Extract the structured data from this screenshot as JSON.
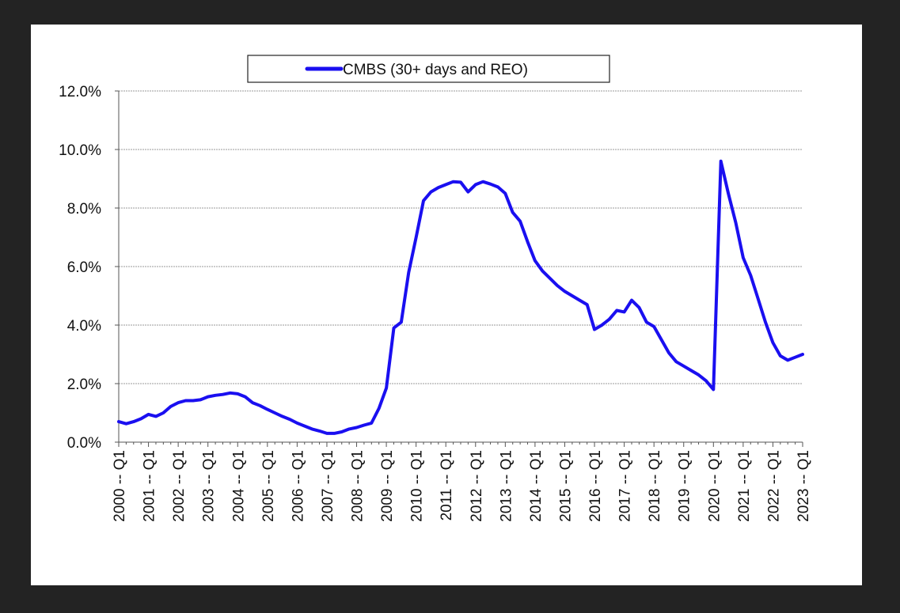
{
  "chart_data": {
    "type": "line",
    "title": "",
    "xlabel": "",
    "ylabel": "",
    "ylim": [
      0,
      12
    ],
    "y_tick_labels": [
      "0.0%",
      "2.0%",
      "4.0%",
      "6.0%",
      "8.0%",
      "10.0%",
      "12.0%"
    ],
    "x_tick_labels": [
      "2000 -- Q1",
      "2001 -- Q1",
      "2002 -- Q1",
      "2003 -- Q1",
      "2004 -- Q1",
      "2005 -- Q1",
      "2006 -- Q1",
      "2007 -- Q1",
      "2008 -- Q1",
      "2009 -- Q1",
      "2010 -- Q1",
      "2011 -- Q1",
      "2012 -- Q1",
      "2013 -- Q1",
      "2014 -- Q1",
      "2015 -- Q1",
      "2016 -- Q1",
      "2017 -- Q1",
      "2018 -- Q1",
      "2019 -- Q1",
      "2020 -- Q1",
      "2021 -- Q1",
      "2022 -- Q1",
      "2023 -- Q1"
    ],
    "grid": true,
    "legend_position": "top-center",
    "series": [
      {
        "name": "CMBS (30+ days and REO)",
        "color": "#1a0ff0",
        "x": [
          2000.0,
          2000.25,
          2000.5,
          2000.75,
          2001.0,
          2001.25,
          2001.5,
          2001.75,
          2002.0,
          2002.25,
          2002.5,
          2002.75,
          2003.0,
          2003.25,
          2003.5,
          2003.75,
          2004.0,
          2004.25,
          2004.5,
          2004.75,
          2005.0,
          2005.25,
          2005.5,
          2005.75,
          2006.0,
          2006.25,
          2006.5,
          2006.75,
          2007.0,
          2007.25,
          2007.5,
          2007.75,
          2008.0,
          2008.25,
          2008.5,
          2008.75,
          2009.0,
          2009.25,
          2009.5,
          2009.75,
          2010.0,
          2010.25,
          2010.5,
          2010.75,
          2011.0,
          2011.25,
          2011.5,
          2011.75,
          2012.0,
          2012.25,
          2012.5,
          2012.75,
          2013.0,
          2013.25,
          2013.5,
          2013.75,
          2014.0,
          2014.25,
          2014.5,
          2014.75,
          2015.0,
          2015.25,
          2015.5,
          2015.75,
          2016.0,
          2016.25,
          2016.5,
          2016.75,
          2017.0,
          2017.25,
          2017.5,
          2017.75,
          2018.0,
          2018.25,
          2018.5,
          2018.75,
          2019.0,
          2019.25,
          2019.5,
          2019.75,
          2020.0,
          2020.25,
          2020.5,
          2020.75,
          2021.0,
          2021.25,
          2021.5,
          2021.75,
          2022.0,
          2022.25,
          2022.5,
          2022.75,
          2023.0
        ],
        "values": [
          0.7,
          0.63,
          0.7,
          0.8,
          0.95,
          0.88,
          1.0,
          1.22,
          1.35,
          1.42,
          1.42,
          1.45,
          1.55,
          1.6,
          1.63,
          1.68,
          1.65,
          1.55,
          1.35,
          1.25,
          1.12,
          1.0,
          0.88,
          0.78,
          0.65,
          0.55,
          0.45,
          0.38,
          0.3,
          0.3,
          0.35,
          0.45,
          0.5,
          0.58,
          0.65,
          1.15,
          1.85,
          3.9,
          4.1,
          5.8,
          7.0,
          8.25,
          8.55,
          8.7,
          8.8,
          8.9,
          8.88,
          8.55,
          8.8,
          8.9,
          8.82,
          8.72,
          8.5,
          7.85,
          7.55,
          6.85,
          6.2,
          5.85,
          5.6,
          5.35,
          5.15,
          5.0,
          4.85,
          4.7,
          3.85,
          4.0,
          4.2,
          4.5,
          4.45,
          4.85,
          4.6,
          4.1,
          3.95,
          3.5,
          3.05,
          2.75,
          2.6,
          2.45,
          2.3,
          2.1,
          1.8,
          9.6,
          8.5,
          7.5,
          6.3,
          5.7,
          4.9,
          4.1,
          3.4,
          2.95,
          2.8,
          2.9,
          3.0
        ]
      }
    ]
  }
}
